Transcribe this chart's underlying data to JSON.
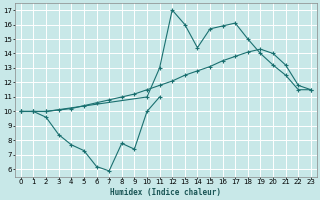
{
  "xlabel": "Humidex (Indice chaleur)",
  "xlim": [
    -0.5,
    23.5
  ],
  "ylim": [
    5.5,
    17.5
  ],
  "yticks": [
    6,
    7,
    8,
    9,
    10,
    11,
    12,
    13,
    14,
    15,
    16,
    17
  ],
  "xticks": [
    0,
    1,
    2,
    3,
    4,
    5,
    6,
    7,
    8,
    9,
    10,
    11,
    12,
    13,
    14,
    15,
    16,
    17,
    18,
    19,
    20,
    21,
    22,
    23
  ],
  "bg_color": "#c8e8e8",
  "line_color": "#1a7070",
  "grid_color": "#ffffff",
  "curve1_x": [
    0,
    1,
    2,
    10,
    11,
    12,
    13,
    14,
    15,
    16,
    17,
    18,
    19,
    20,
    21,
    22,
    23
  ],
  "curve1_y": [
    10,
    10,
    10,
    11,
    13,
    17,
    16,
    14.4,
    15.7,
    15.9,
    16.1,
    15.0,
    14.0,
    13.2,
    12.5,
    11.5,
    11.5
  ],
  "curve2_x": [
    0,
    1,
    2,
    3,
    4,
    5,
    6,
    7,
    8,
    9,
    10,
    11,
    12,
    13,
    14,
    15,
    16,
    17,
    18,
    19,
    20,
    21,
    22,
    23
  ],
  "curve2_y": [
    10,
    10,
    10,
    10.1,
    10.2,
    10.4,
    10.6,
    10.8,
    11.0,
    11.2,
    11.5,
    11.8,
    12.1,
    12.5,
    12.8,
    13.1,
    13.5,
    13.8,
    14.1,
    14.3,
    14.0,
    13.2,
    11.8,
    11.5
  ],
  "curve3_x": [
    0,
    1,
    2,
    3,
    4,
    5,
    6,
    7,
    8,
    9,
    10,
    11
  ],
  "curve3_y": [
    10,
    10,
    9.6,
    8.4,
    7.7,
    7.3,
    6.2,
    5.9,
    7.8,
    7.4,
    10.0,
    11.0
  ]
}
